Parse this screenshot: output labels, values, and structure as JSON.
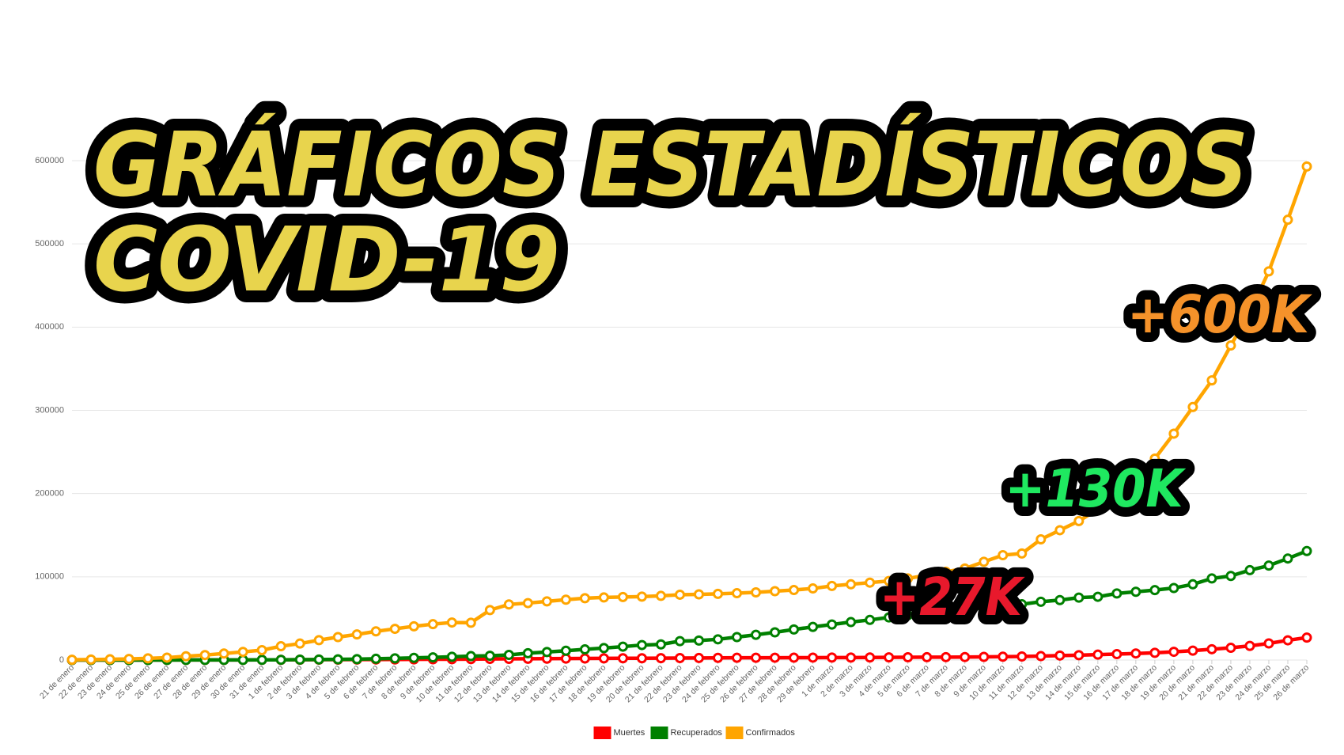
{
  "chart_data": {
    "type": "line",
    "title": "GRÁFICOS ESTADÍSTICOS",
    "subtitle": "COVID-19",
    "title_color": "#e8d44d",
    "annotations": [
      {
        "text": "+600K",
        "color": "#f5922a"
      },
      {
        "text": "+130K",
        "color": "#1fe860"
      },
      {
        "text": "+27K",
        "color": "#e8192c"
      }
    ],
    "categories": [
      "21 de enero",
      "22 de enero",
      "23 de enero",
      "24 de enero",
      "25 de enero",
      "26 de enero",
      "27 de enero",
      "28 de enero",
      "29 de enero",
      "30 de enero",
      "31 de enero",
      "1 de febrero",
      "2 de febrero",
      "3 de febrero",
      "4 de febrero",
      "5 de febrero",
      "6 de febrero",
      "7 de febrero",
      "8 de febrero",
      "9 de febrero",
      "10 de febrero",
      "11 de febrero",
      "12 de febrero",
      "13 de febrero",
      "14 de febrero",
      "15 de febrero",
      "16 de febrero",
      "17 de febrero",
      "18 de febrero",
      "19 de febrero",
      "20 de febrero",
      "21 de febrero",
      "22 de febrero",
      "23 de febrero",
      "24 de febrero",
      "25 de febrero",
      "26 de febrero",
      "27 de febrero",
      "28 de febrero",
      "29 de febrero",
      "1 de marzo",
      "2 de marzo",
      "3 de marzo",
      "4 de marzo",
      "5 de marzo",
      "6 de marzo",
      "7 de marzo",
      "8 de marzo",
      "9 de marzo",
      "10 de marzo",
      "11 de marzo",
      "12 de marzo",
      "13 de marzo",
      "14 de marzo",
      "15 de marzo",
      "16 de marzo",
      "17 de marzo",
      "18 de marzo",
      "19 de marzo",
      "20 de marzo",
      "21 de marzo",
      "22 de marzo",
      "23 de marzo",
      "24 de marzo",
      "25 de marzo",
      "26 de marzo"
    ],
    "series": [
      {
        "name": "Muertes",
        "color": "#ff0000",
        "values": [
          10,
          20,
          20,
          20,
          40,
          60,
          80,
          130,
          130,
          170,
          210,
          260,
          360,
          430,
          490,
          560,
          640,
          720,
          810,
          910,
          1010,
          1110,
          1360,
          1380,
          1520,
          1660,
          1770,
          1870,
          2000,
          2120,
          2120,
          2250,
          2360,
          2460,
          2620,
          2700,
          2710,
          2770,
          2800,
          2900,
          2990,
          3000,
          3100,
          3200,
          3300,
          3400,
          3500,
          3600,
          3800,
          4000,
          4300,
          4700,
          5400,
          5800,
          6500,
          7100,
          7900,
          8700,
          9900,
          11300,
          13000,
          14700,
          17000,
          20000,
          23700,
          27000
        ]
      },
      {
        "name": "Recuperados",
        "color": "#008000",
        "values": [
          0,
          0,
          0,
          0,
          0,
          50,
          60,
          100,
          120,
          140,
          220,
          280,
          470,
          630,
          850,
          1100,
          1500,
          2000,
          2600,
          3200,
          3900,
          4700,
          5100,
          6200,
          8200,
          9600,
          11200,
          12800,
          14400,
          16100,
          18000,
          18800,
          22700,
          23400,
          24900,
          27600,
          30300,
          33300,
          36700,
          39800,
          42700,
          45600,
          48200,
          51200,
          53800,
          55900,
          58400,
          60700,
          62500,
          64400,
          67000,
          70000,
          72000,
          75000,
          76000,
          80000,
          82000,
          84000,
          86500,
          91000,
          98000,
          101000,
          108000,
          113500,
          122000,
          131000
        ]
      },
      {
        "name": "Confirmados",
        "color": "#ffa500",
        "values": [
          300,
          600,
          900,
          1300,
          2000,
          2900,
          4500,
          6000,
          7800,
          9800,
          11900,
          16600,
          19800,
          23900,
          27600,
          30800,
          34500,
          37500,
          40500,
          43100,
          45100,
          44800,
          60000,
          66800,
          68400,
          70500,
          72500,
          74300,
          75200,
          75700,
          76200,
          77100,
          78500,
          78900,
          79500,
          80300,
          81300,
          82700,
          84100,
          86000,
          89000,
          91000,
          93000,
          95000,
          98000,
          102000,
          106000,
          110000,
          118000,
          126000,
          128000,
          145000,
          156000,
          167000,
          181000,
          197000,
          215000,
          242000,
          272000,
          304000,
          336000,
          378000,
          418000,
          467000,
          529000,
          593000
        ]
      }
    ],
    "ylim": [
      0,
      600000
    ],
    "yticks": [
      0,
      100000,
      200000,
      300000,
      400000,
      500000,
      600000
    ],
    "grid": true,
    "legend": "bottom"
  }
}
